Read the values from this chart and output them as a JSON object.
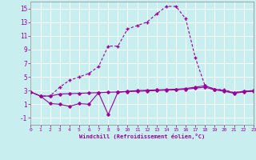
{
  "xlabel": "Windchill (Refroidissement éolien,°C)",
  "background_color": "#c8eef0",
  "grid_color": "#ffffff",
  "line_color": "#990099",
  "xlim": [
    0,
    23
  ],
  "ylim": [
    -2,
    16
  ],
  "xticks": [
    0,
    1,
    2,
    3,
    4,
    5,
    6,
    7,
    8,
    9,
    10,
    11,
    12,
    13,
    14,
    15,
    16,
    17,
    18,
    19,
    20,
    21,
    22,
    23
  ],
  "yticks": [
    -1,
    1,
    3,
    5,
    7,
    9,
    11,
    13,
    15
  ],
  "curve1_x": [
    0,
    1,
    2,
    3,
    4,
    5,
    6,
    7,
    8,
    9,
    10,
    11,
    12,
    13,
    14,
    15,
    16,
    17,
    18,
    19,
    20,
    21,
    22,
    23
  ],
  "curve1_y": [
    2.8,
    2.2,
    2.2,
    3.5,
    4.5,
    5.0,
    5.5,
    6.5,
    9.5,
    9.5,
    12.0,
    12.5,
    13.0,
    14.2,
    15.3,
    15.3,
    13.5,
    7.8,
    3.7,
    3.2,
    3.1,
    2.7,
    2.9,
    3.0
  ],
  "curve2_x": [
    0,
    1,
    2,
    3,
    4,
    5,
    6,
    7,
    8,
    9,
    10,
    11,
    12,
    13,
    14,
    15,
    16,
    17,
    18,
    19,
    20,
    21,
    22,
    23
  ],
  "curve2_y": [
    2.8,
    2.2,
    2.2,
    2.5,
    2.55,
    2.6,
    2.65,
    2.7,
    2.75,
    2.8,
    2.9,
    3.0,
    3.05,
    3.1,
    3.15,
    3.2,
    3.3,
    3.5,
    3.7,
    3.2,
    3.0,
    2.7,
    2.9,
    3.0
  ],
  "curve3_x": [
    0,
    1,
    2,
    3,
    4,
    5,
    6,
    7,
    8,
    9,
    10,
    11,
    12,
    13,
    14,
    15,
    16,
    17,
    18,
    19,
    20,
    21,
    22,
    23
  ],
  "curve3_y": [
    2.8,
    2.2,
    1.1,
    1.0,
    0.7,
    1.1,
    1.0,
    2.7,
    -0.5,
    2.75,
    2.85,
    2.9,
    2.95,
    3.0,
    3.05,
    3.1,
    3.2,
    3.35,
    3.5,
    3.1,
    2.9,
    2.6,
    2.8,
    2.9
  ]
}
